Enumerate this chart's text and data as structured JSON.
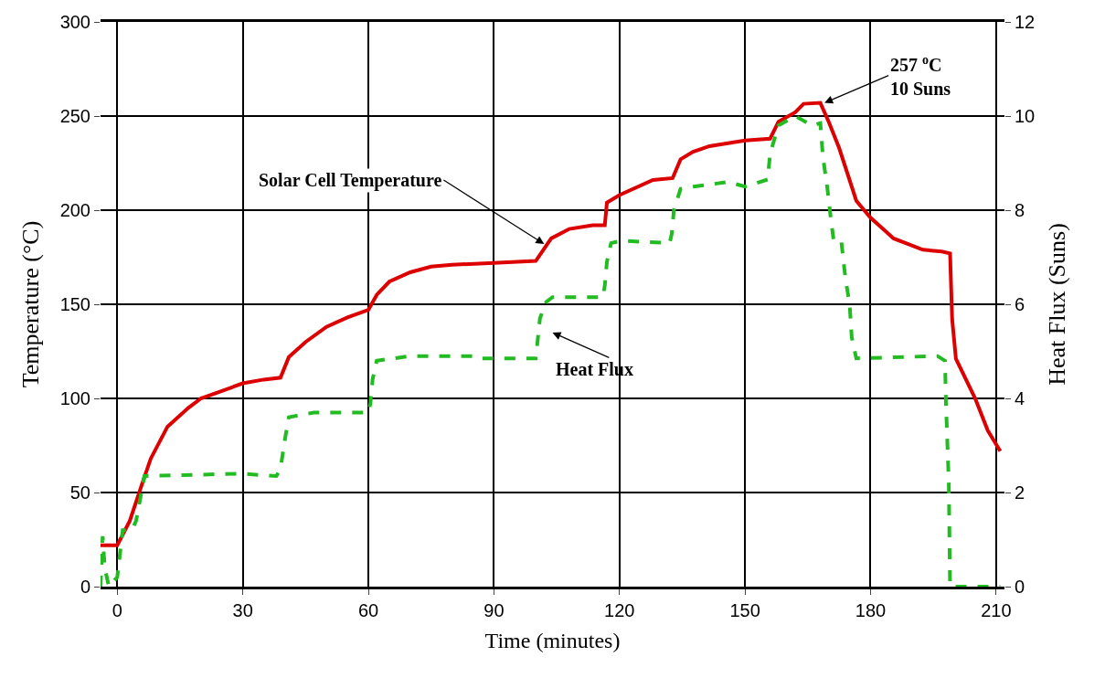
{
  "chart_data": {
    "type": "line",
    "xlabel": "Time (minutes)",
    "ylabel": "Temperature (°C)",
    "y2label": "Heat Flux (Suns)",
    "xlim": [
      -4,
      212
    ],
    "xticks": [
      0,
      30,
      60,
      90,
      120,
      150,
      180,
      210
    ],
    "ylim": [
      0,
      300
    ],
    "yticks": [
      0,
      50,
      100,
      150,
      200,
      250,
      300
    ],
    "y2lim": [
      0,
      12
    ],
    "y2ticks": [
      0,
      2,
      4,
      6,
      8,
      10,
      12
    ],
    "grid": true,
    "marker": "none",
    "series": [
      {
        "color": "#dd0000",
        "line_style": "solid",
        "x": [
          -4,
          0,
          3,
          6,
          8,
          12,
          17,
          20,
          25,
          30,
          35,
          39,
          41,
          45,
          50,
          55,
          60,
          62,
          65,
          70,
          75,
          80,
          90,
          100,
          103.7,
          108,
          113.6,
          116.5,
          117,
          120,
          128,
          132.7,
          134.6,
          137.6,
          141.5,
          150,
          156,
          158,
          162,
          164,
          168,
          170,
          172.5,
          176.6,
          180,
          185.5,
          192.5,
          197,
          199,
          199.5,
          200.4,
          205,
          208,
          211
        ],
        "values": [
          22,
          22,
          35,
          55,
          68,
          85,
          95,
          100,
          104,
          108,
          110,
          111,
          122,
          130,
          138,
          143,
          147,
          155,
          162,
          167,
          170,
          171,
          172,
          173,
          185,
          190,
          192,
          192,
          204,
          208,
          216,
          217,
          227,
          231,
          234,
          237,
          238,
          247,
          252,
          256.5,
          257,
          247,
          233,
          205,
          196,
          185,
          179,
          178,
          177,
          142,
          121,
          100,
          83,
          72
        ]
      },
      {
        "color": "#22bb22",
        "line_style": "dashed",
        "axis": "y2",
        "x": [
          -4,
          -3.5,
          -3,
          -2,
          0,
          1.3,
          3.5,
          4.5,
          6.5,
          29.5,
          38,
          39,
          40,
          41,
          47,
          60,
          60.5,
          61,
          62,
          70,
          86,
          87,
          100,
          101,
          102.5,
          104,
          116,
          116.5,
          117,
          118,
          120.5,
          132,
          132.5,
          133,
          134.6,
          137.7,
          146,
          150,
          155.4,
          156,
          158,
          162,
          166,
          168,
          168.6,
          169.7,
          170.6,
          171.2,
          173,
          174,
          175,
          175.5,
          176.6,
          196,
          197.8,
          198,
          198.7,
          199,
          209.5,
          211
        ],
        "values": [
          0,
          1.07,
          0.4,
          0,
          0.2,
          1.2,
          1.2,
          1.4,
          2.35,
          2.4,
          2.35,
          2.5,
          3.1,
          3.6,
          3.7,
          3.7,
          3.9,
          4.4,
          4.8,
          4.9,
          4.9,
          4.85,
          4.85,
          5.7,
          6.05,
          6.15,
          6.15,
          6.4,
          6.9,
          7.3,
          7.35,
          7.3,
          7.5,
          8.0,
          8.45,
          8.5,
          8.6,
          8.5,
          8.65,
          9.2,
          9.8,
          10.0,
          9.8,
          9.85,
          9.15,
          8.45,
          7.75,
          7.35,
          7.35,
          6.55,
          6.0,
          5.3,
          4.85,
          4.9,
          4.8,
          3.95,
          2.2,
          0,
          0,
          0
        ]
      }
    ],
    "annotations": [
      {
        "text": "Solar Cell Temperature",
        "x": 102,
        "y": 182
      },
      "Heat Flux",
      {
        "text": "257 $^{o}$C\n10 Suns",
        "x": 169,
        "y": 257
      }
    ]
  }
}
